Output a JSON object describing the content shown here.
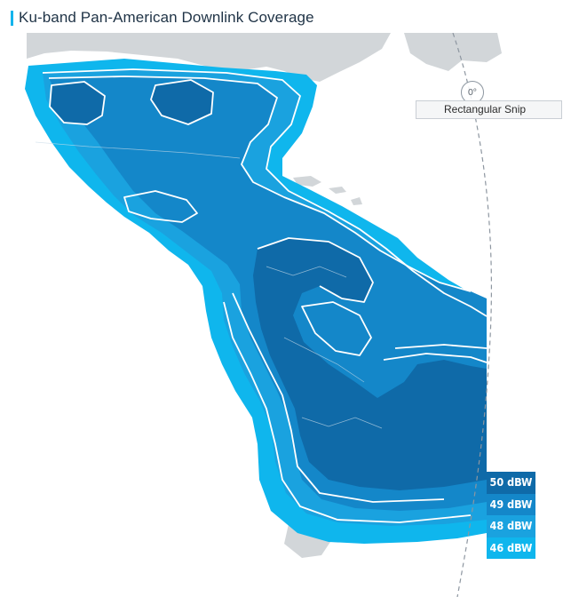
{
  "title": "Ku-band Pan-American Downlink Coverage",
  "colors": {
    "accent": "#14b4ec",
    "land": "#d2d6d9",
    "land_border": "#ffffff",
    "zone_46": "#0fb6ed",
    "zone_48": "#1aa2df",
    "zone_49": "#1487c9",
    "zone_50": "#0f6aa8",
    "contour": "#ffffff"
  },
  "legend": [
    {
      "label": "50 dBW",
      "color": "#0f6aa8"
    },
    {
      "label": "49 dBW",
      "color": "#1487c9"
    },
    {
      "label": "48 dBW",
      "color": "#1aa2df"
    },
    {
      "label": "46 dBW",
      "color": "#0fb6ed"
    }
  ],
  "overlay": {
    "rotation_label": "0°",
    "snip_menu_label": "Rectangular Snip"
  }
}
